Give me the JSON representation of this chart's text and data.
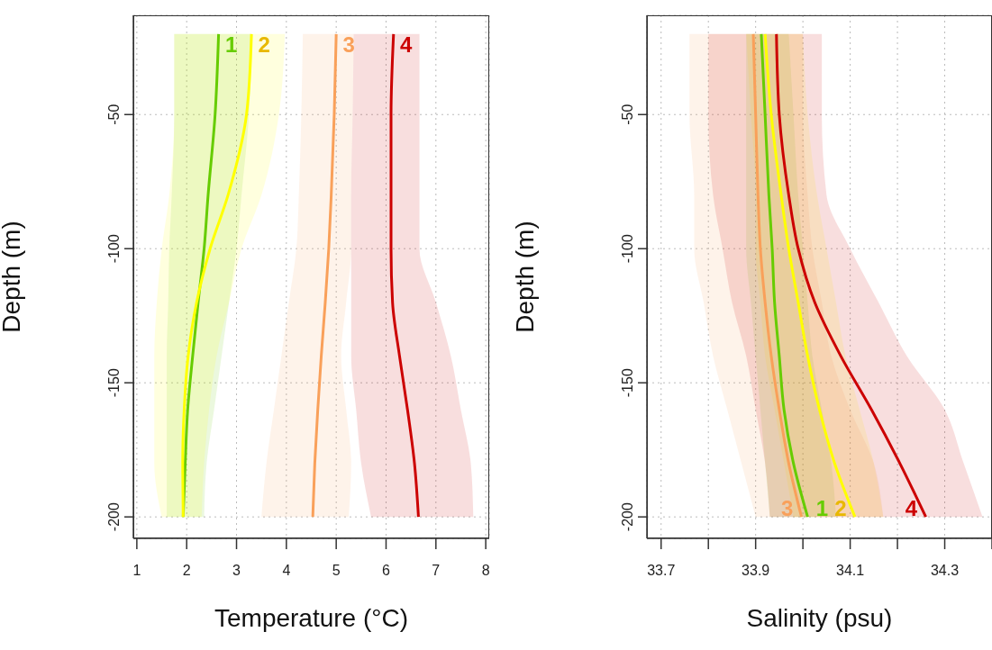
{
  "chart_data": [
    {
      "type": "line",
      "orientation": "horizontal",
      "xlabel": "Temperature (°C)",
      "ylabel": "Depth (m)",
      "xlim": [
        0.93,
        8.07
      ],
      "xticks": [
        1,
        2,
        3,
        4,
        5,
        6,
        7,
        8
      ],
      "ylim": [
        -208,
        -13
      ],
      "yticks": [
        -50,
        -100,
        -150,
        -200
      ],
      "grid": true,
      "marker": "none",
      "line_style": "solid",
      "series": [
        {
          "name": "1",
          "color": "#66cc00",
          "x": [
            -20,
            -50,
            -80,
            -100,
            -120,
            -140,
            -160,
            -180,
            -200
          ],
          "values": [
            2.64,
            2.57,
            2.43,
            2.35,
            2.23,
            2.12,
            2.02,
            1.97,
            1.93
          ],
          "lower": [
            1.75,
            1.75,
            1.7,
            1.65,
            1.63,
            1.6,
            1.6,
            1.6,
            1.6
          ],
          "upper": [
            3.3,
            3.25,
            3.1,
            3.0,
            2.85,
            2.7,
            2.55,
            2.4,
            2.35
          ]
        },
        {
          "name": "2",
          "color": "#ffff00",
          "x": [
            -20,
            -50,
            -80,
            -100,
            -120,
            -140,
            -160,
            -180,
            -200
          ],
          "values": [
            3.3,
            3.2,
            2.83,
            2.47,
            2.2,
            2.03,
            1.95,
            1.92,
            1.93
          ],
          "lower": [
            1.75,
            1.75,
            1.65,
            1.5,
            1.4,
            1.35,
            1.35,
            1.35,
            1.5
          ],
          "upper": [
            3.97,
            3.85,
            3.5,
            3.1,
            2.85,
            2.6,
            2.45,
            2.35,
            2.3
          ]
        },
        {
          "name": "3",
          "color": "#f9a05a",
          "x": [
            -20,
            -50,
            -80,
            -100,
            -120,
            -140,
            -160,
            -180,
            -200
          ],
          "values": [
            5.0,
            4.96,
            4.9,
            4.85,
            4.78,
            4.7,
            4.63,
            4.57,
            4.53
          ],
          "lower": [
            4.33,
            4.3,
            4.25,
            4.2,
            4.05,
            3.9,
            3.75,
            3.6,
            3.5
          ],
          "upper": [
            5.35,
            5.33,
            5.3,
            5.3,
            5.2,
            5.1,
            5.2,
            5.3,
            5.25
          ]
        },
        {
          "name": "4",
          "color": "#cc0000",
          "x": [
            -20,
            -50,
            -80,
            -100,
            -120,
            -140,
            -160,
            -180,
            -200
          ],
          "values": [
            6.15,
            6.1,
            6.1,
            6.1,
            6.13,
            6.27,
            6.43,
            6.57,
            6.65
          ],
          "lower": [
            5.35,
            5.33,
            5.3,
            5.3,
            5.3,
            5.3,
            5.4,
            5.5,
            5.7
          ],
          "upper": [
            6.67,
            6.67,
            6.67,
            6.67,
            7.0,
            7.3,
            7.5,
            7.7,
            7.75
          ]
        }
      ]
    },
    {
      "type": "line",
      "orientation": "horizontal",
      "xlabel": "Salinity (psu)",
      "ylabel": "Depth (m)",
      "xlim": [
        33.67,
        34.4
      ],
      "xticks": [
        33.7,
        {
          "value": 33.8,
          "label": null
        },
        33.9,
        {
          "value": 34.0,
          "label": null
        },
        34.1,
        {
          "value": 34.2,
          "label": null
        },
        34.3,
        {
          "value": 34.4,
          "label": null
        }
      ],
      "ylim": [
        -208,
        -13
      ],
      "yticks": [
        -50,
        -100,
        -150,
        -200
      ],
      "grid": true,
      "marker": "none",
      "line_style": "solid",
      "series": [
        {
          "name": "1",
          "color": "#66cc00",
          "x": [
            -20,
            -50,
            -80,
            -100,
            -120,
            -140,
            -160,
            -180,
            -200
          ],
          "values": [
            33.912,
            33.92,
            33.928,
            33.935,
            33.94,
            33.95,
            33.96,
            33.98,
            34.01
          ],
          "lower": [
            33.88,
            33.88,
            33.88,
            33.88,
            33.89,
            33.9,
            33.91,
            33.92,
            33.93
          ],
          "upper": [
            33.97,
            33.98,
            33.99,
            34.0,
            34.01,
            34.02,
            34.04,
            34.06,
            34.07
          ]
        },
        {
          "name": "2",
          "color": "#ffff00",
          "x": [
            -20,
            -50,
            -80,
            -100,
            -120,
            -140,
            -160,
            -180,
            -200
          ],
          "values": [
            33.92,
            33.933,
            33.954,
            33.97,
            33.99,
            34.01,
            34.035,
            34.067,
            34.11
          ],
          "lower": [
            33.88,
            33.89,
            33.9,
            33.9,
            33.91,
            33.92,
            33.94,
            33.96,
            33.98
          ],
          "upper": [
            34.0,
            34.01,
            34.03,
            34.05,
            34.07,
            34.09,
            34.12,
            34.15,
            34.17
          ]
        },
        {
          "name": "3",
          "color": "#f9a05a",
          "x": [
            -20,
            -50,
            -80,
            -100,
            -120,
            -140,
            -160,
            -180,
            -200
          ],
          "values": [
            33.895,
            33.9,
            33.905,
            33.91,
            33.92,
            33.933,
            33.95,
            33.97,
            33.997
          ],
          "lower": [
            33.76,
            33.76,
            33.77,
            33.77,
            33.79,
            33.81,
            33.84,
            33.87,
            33.9
          ],
          "upper": [
            34.0,
            34.0,
            34.01,
            34.02,
            34.04,
            34.06,
            34.1,
            34.15,
            34.17
          ]
        },
        {
          "name": "4",
          "color": "#cc0000",
          "x": [
            -20,
            -50,
            -80,
            -100,
            -120,
            -140,
            -160,
            -180,
            -200
          ],
          "values": [
            33.944,
            33.95,
            33.97,
            33.99,
            34.025,
            34.08,
            34.145,
            34.205,
            34.26
          ],
          "lower": [
            33.8,
            33.8,
            33.81,
            33.83,
            33.85,
            33.88,
            33.9,
            33.92,
            33.93
          ],
          "upper": [
            34.04,
            34.04,
            34.05,
            34.1,
            34.16,
            34.22,
            34.3,
            34.34,
            34.38
          ]
        }
      ]
    }
  ]
}
